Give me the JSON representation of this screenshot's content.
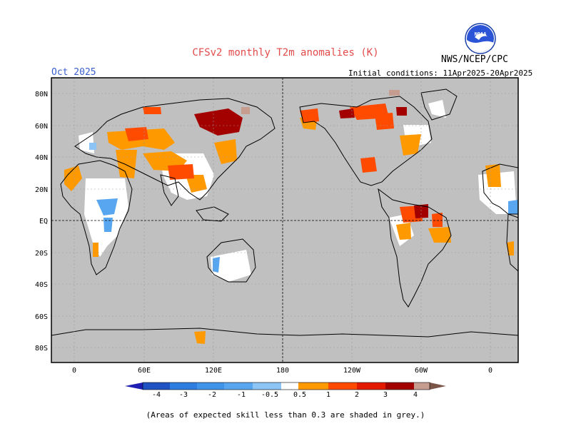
{
  "header": {
    "title": "CFSv2 monthly T2m anomalies (K)",
    "month": "Oct 2025",
    "initial_conditions": "Initial conditions: 11Apr2025-20Apr2025",
    "agency": "NWS/NCEP/CPC",
    "logo_text": "NOAA"
  },
  "map": {
    "lat_labels": [
      "80N",
      "60N",
      "40N",
      "20N",
      "EQ",
      "20S",
      "40S",
      "60S",
      "80S"
    ],
    "lon_labels": [
      "0",
      "60E",
      "120E",
      "180",
      "120W",
      "60W",
      "0"
    ],
    "background_color": "#c0c0c0",
    "skill_mask_note": "grey = low skill"
  },
  "colorbar": {
    "labels": [
      "-4",
      "-3",
      "-2",
      "-1",
      "-0.5",
      "0.5",
      "1",
      "2",
      "3",
      "4"
    ],
    "colors": [
      "#1f1fb3",
      "#1f52c2",
      "#2e7de0",
      "#58a6f0",
      "#8cc4f5",
      "#ffffff",
      "#ff9900",
      "#ff4b00",
      "#e31a00",
      "#a30000",
      "#c69d8f",
      "#7a5548"
    ]
  },
  "footnote": "(Areas of expected skill less than 0.3 are shaded in grey.)"
}
